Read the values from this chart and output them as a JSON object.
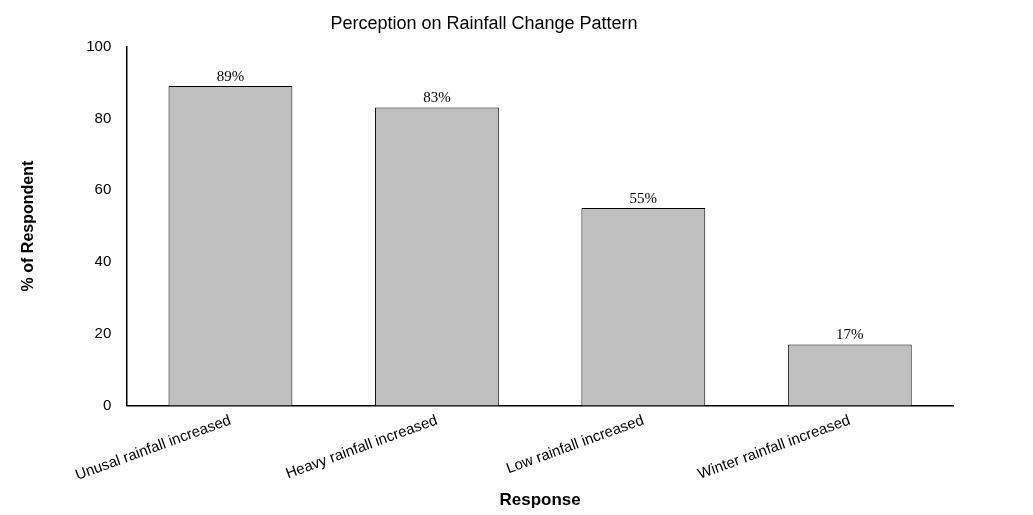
{
  "chart_data": {
    "type": "bar",
    "title": "Perception on Rainfall Change Pattern",
    "xlabel": "Response",
    "ylabel": "% of Respondent",
    "categories": [
      "Unusal rainfall increased",
      "Heavy rainfall increased",
      "Low rainfall increased",
      "Winter rainfall increased"
    ],
    "values": [
      89,
      83,
      55,
      17
    ],
    "color": "#c0c0c0",
    "value_labels": [
      "89%",
      "83%",
      "55%",
      "17%"
    ],
    "ylim": [
      0,
      100
    ],
    "yticks": [
      0,
      20,
      40,
      60,
      80,
      100
    ],
    "grid": false,
    "legend": false
  }
}
